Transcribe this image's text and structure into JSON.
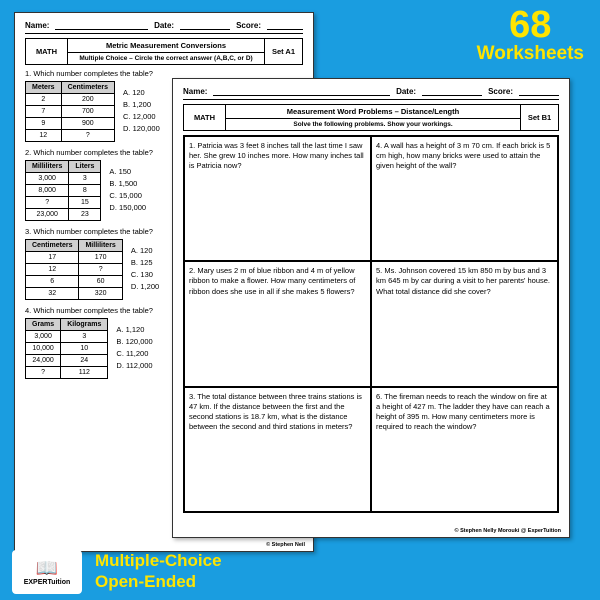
{
  "badge": {
    "num": "68",
    "word": "Worksheets",
    "l1": "Multiple-Choice",
    "l2": "Open-Ended"
  },
  "logo": {
    "icon": "📖",
    "name": "EXPERTuition"
  },
  "hdr": {
    "name": "Name:",
    "date": "Date:",
    "score": "Score:"
  },
  "s1": {
    "math": "MATH",
    "title": "Metric Measurement Conversions",
    "sub": "Multiple Choice – Circle the correct answer (A,B,C, or D)",
    "set": "Set A1",
    "q": "Which number completes the table?",
    "t1": {
      "h": [
        "Meters",
        "Centimeters"
      ],
      "r": [
        [
          "2",
          "200"
        ],
        [
          "7",
          "700"
        ],
        [
          "9",
          "900"
        ],
        [
          "12",
          "?"
        ]
      ],
      "o": [
        "A.  120",
        "B.  1,200",
        "C.  12,000",
        "D.  120,000"
      ]
    },
    "t2": {
      "h": [
        "Milliliters",
        "Liters"
      ],
      "r": [
        [
          "3,000",
          "3"
        ],
        [
          "8,000",
          "8"
        ],
        [
          "?",
          "15"
        ],
        [
          "23,000",
          "23"
        ]
      ],
      "o": [
        "A.  150",
        "B.  1,500",
        "C.  15,000",
        "D.  150,000"
      ]
    },
    "t3": {
      "h": [
        "Centimeters",
        "Milliliters"
      ],
      "r": [
        [
          "17",
          "170"
        ],
        [
          "12",
          "?"
        ],
        [
          "6",
          "60"
        ],
        [
          "32",
          "320"
        ]
      ],
      "o": [
        "A.  120",
        "B.  125",
        "C.  130",
        "D.  1,200"
      ]
    },
    "t4": {
      "h": [
        "Grams",
        "Kilograms"
      ],
      "r": [
        [
          "3,000",
          "3"
        ],
        [
          "10,000",
          "10"
        ],
        [
          "24,000",
          "24"
        ],
        [
          "?",
          "112"
        ]
      ],
      "o": [
        "A.  1,120",
        "B.  120,000",
        "C.  11,200",
        "D.  112,000"
      ]
    },
    "foot": "© Stephen Neil"
  },
  "s2": {
    "math": "MATH",
    "title": "Measurement Word Problems – Distance/Length",
    "sub": "Solve the following problems. Show your workings.",
    "set": "Set B1",
    "c": [
      "1. Patricia was 3 feet 8 inches tall the last time I saw her. She grew 10 inches more. How many inches tall is Patricia now?",
      "4. A wall has a height of 3 m 70 cm. If each brick is 5 cm high, how many bricks were used to attain the given height of the wall?",
      "2. Mary uses 2 m of blue ribbon and 4 m of yellow ribbon to make a flower. How many centimeters of ribbon does she use in all if she makes 5 flowers?",
      "5. Ms. Johnson covered 15 km 850 m by bus and 3 km 645 m by car during a visit to her parents' house. What total distance did she cover?",
      "3. The total distance between three trains stations is 47 km. If the distance between the first and the second stations is 18.7 km, what is the distance between the second and third stations in meters?",
      "6. The fireman needs to reach the window on fire at a height of 427 m. The ladder they have can reach a height of 395 m. How many centimeters more is required to reach the window?"
    ],
    "foot": "© Stephen Nelly Morouki @ ExperTuition"
  }
}
